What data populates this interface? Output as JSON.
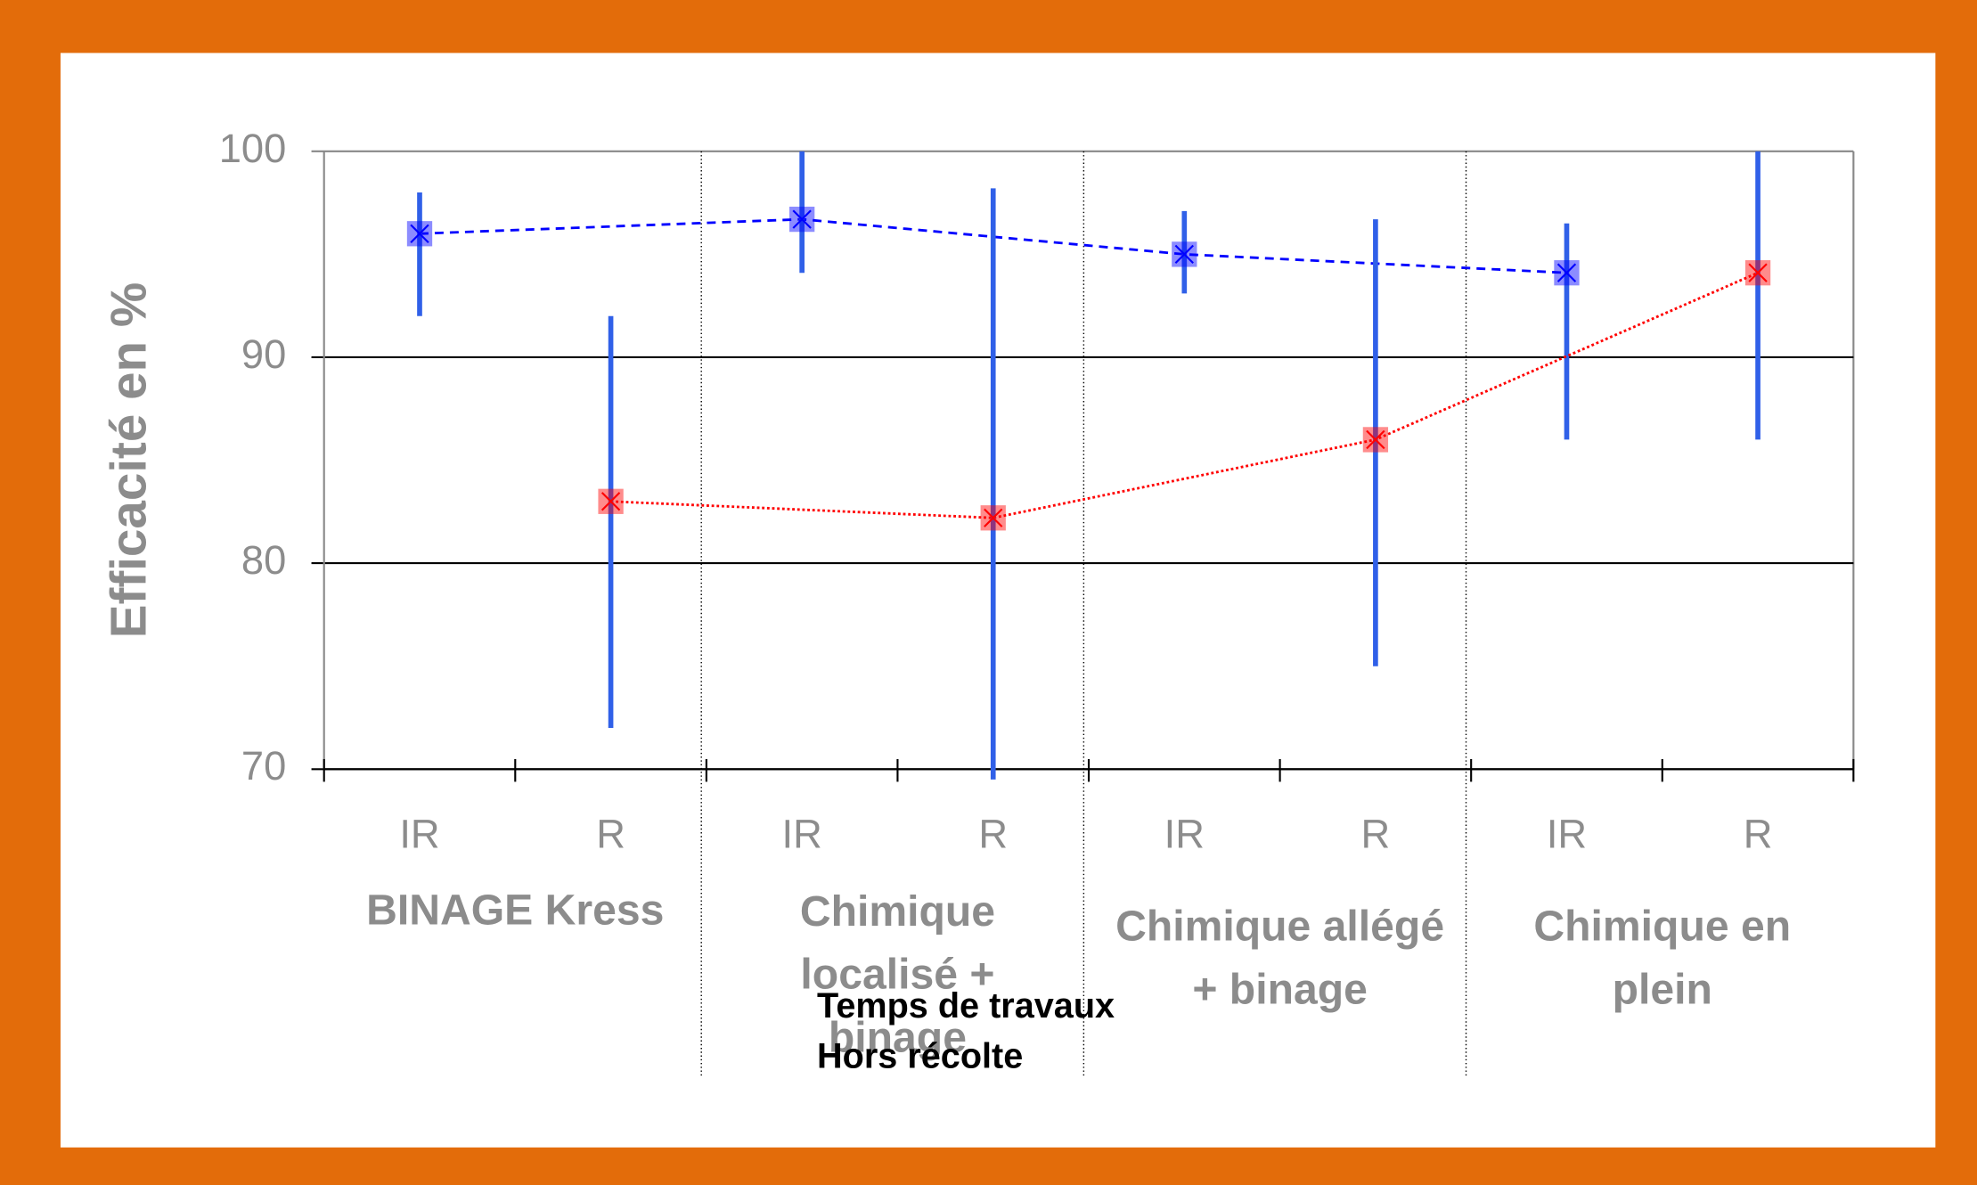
{
  "chart_data": {
    "type": "line",
    "ylabel": "Efficacité en %",
    "groups": [
      "BINAGE Kress",
      "Chimique localisé + binage",
      "Chimique allégé + binage",
      "Chimique en plein"
    ],
    "subcategories": [
      "IR",
      "R"
    ],
    "series": [
      {
        "color": "#0000ff",
        "values": [
          96,
          96.7,
          95,
          94.1
        ],
        "low": [
          92,
          94.1,
          93.1,
          86
        ],
        "high": [
          98,
          100,
          97.1,
          96.5
        ]
      },
      {
        "color": "#ff0000",
        "values": [
          83,
          82.2,
          86,
          94.1
        ],
        "low": [
          72,
          69.5,
          75,
          86
        ],
        "high": [
          92,
          98.2,
          96.7,
          100
        ]
      }
    ],
    "ylim": [
      70,
      100
    ],
    "yticks": [
      70,
      80,
      90,
      100
    ],
    "grid": true,
    "annotation": [
      "Temps de travaux",
      "Hors récolte"
    ]
  }
}
